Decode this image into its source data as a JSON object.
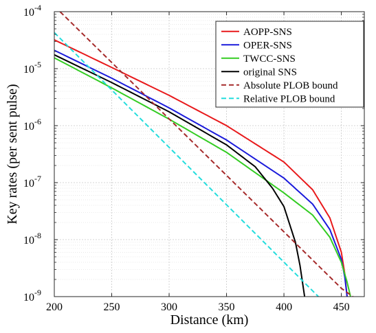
{
  "chart_data": {
    "type": "line",
    "title": "",
    "xlabel": "Distance (km)",
    "ylabel": "Key rates (per sent pulse)",
    "xlim": [
      200,
      470
    ],
    "ylim": [
      1e-09,
      0.0001
    ],
    "yscale": "log",
    "grid": true,
    "legend_position": "top-right",
    "x_ticks": [
      200,
      250,
      300,
      350,
      400,
      450
    ],
    "x_tick_labels": [
      "200",
      "250",
      "300",
      "350",
      "400",
      "450"
    ],
    "y_ticks": [
      1e-09,
      1e-08,
      1e-07,
      1e-06,
      1e-05,
      0.0001
    ],
    "y_tick_labels": [
      {
        "base": "10",
        "exp": "-9"
      },
      {
        "base": "10",
        "exp": "-8"
      },
      {
        "base": "10",
        "exp": "-7"
      },
      {
        "base": "10",
        "exp": "-6"
      },
      {
        "base": "10",
        "exp": "-5"
      },
      {
        "base": "10",
        "exp": "-4"
      }
    ],
    "series": [
      {
        "name": "AOPP-SNS",
        "color": "#e8191b",
        "dash": "solid",
        "points": [
          [
            200,
            3.2e-05
          ],
          [
            250,
            1.05e-05
          ],
          [
            300,
            3.4e-06
          ],
          [
            350,
            1e-06
          ],
          [
            400,
            2.3e-07
          ],
          [
            425,
            7.5e-08
          ],
          [
            440,
            2.4e-08
          ],
          [
            450,
            6e-09
          ],
          [
            453,
            2.5e-09
          ],
          [
            455,
            1e-09
          ]
        ]
      },
      {
        "name": "OPER-SNS",
        "color": "#1a1adb",
        "dash": "solid",
        "points": [
          [
            200,
            2.1e-05
          ],
          [
            250,
            6.8e-06
          ],
          [
            300,
            2.05e-06
          ],
          [
            350,
            5.6e-07
          ],
          [
            400,
            1.2e-07
          ],
          [
            425,
            4.2e-08
          ],
          [
            440,
            1.5e-08
          ],
          [
            450,
            4.5e-09
          ],
          [
            453,
            2.2e-09
          ],
          [
            455,
            1e-09
          ]
        ]
      },
      {
        "name": "TWCC-SNS",
        "color": "#33cc22",
        "dash": "solid",
        "points": [
          [
            200,
            1.55e-05
          ],
          [
            250,
            4.6e-06
          ],
          [
            300,
            1.3e-06
          ],
          [
            350,
            3.4e-07
          ],
          [
            400,
            6.6e-08
          ],
          [
            425,
            2.7e-08
          ],
          [
            440,
            1.1e-08
          ],
          [
            450,
            4e-09
          ],
          [
            455,
            1.8e-09
          ],
          [
            458,
            1e-09
          ]
        ]
      },
      {
        "name": "original SNS",
        "color": "#000000",
        "dash": "solid",
        "points": [
          [
            200,
            1.75e-05
          ],
          [
            250,
            5.7e-06
          ],
          [
            300,
            1.75e-06
          ],
          [
            350,
            4.6e-07
          ],
          [
            375,
            1.9e-07
          ],
          [
            390,
            8e-08
          ],
          [
            400,
            3.8e-08
          ],
          [
            410,
            9e-09
          ],
          [
            414,
            3.5e-09
          ],
          [
            418,
            1e-09
          ]
        ]
      },
      {
        "name": "Absolute PLOB bound",
        "color": "#a52a2a",
        "dash": "dashed",
        "points": [
          [
            205,
            0.0001
          ],
          [
            450,
            1.4e-09
          ],
          [
            460,
            1e-09
          ]
        ]
      },
      {
        "name": "Relative PLOB bound",
        "color": "#22dddd",
        "dash": "dashed",
        "points": [
          [
            200,
            4.3e-05
          ],
          [
            430,
            1e-09
          ]
        ]
      }
    ]
  }
}
